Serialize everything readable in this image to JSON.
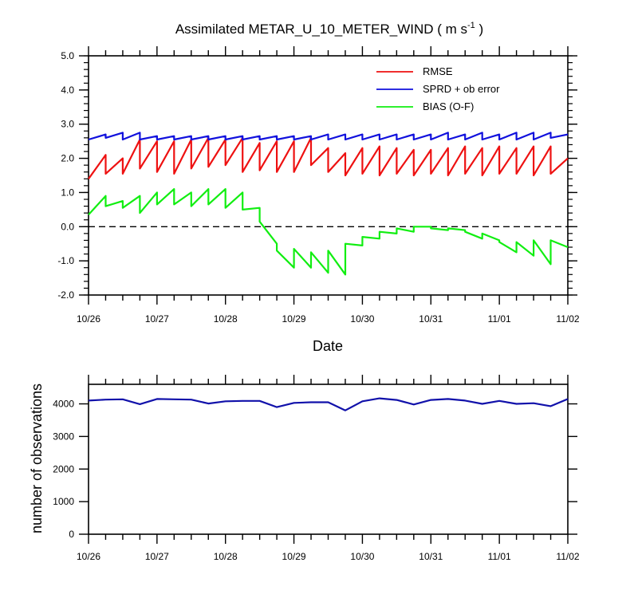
{
  "chart_data": [
    {
      "type": "line",
      "title": "Assimilated METAR_U_10_METER_WIND ( m s",
      "title_superscript": "-1",
      "title_close": " )",
      "xlabel": "Date",
      "ylabel": "",
      "x_ticks": [
        "10/26",
        "10/27",
        "10/28",
        "10/29",
        "10/30",
        "10/31",
        "11/01",
        "11/02"
      ],
      "xlim": [
        "10/26",
        "11/02"
      ],
      "ylim": [
        -2.0,
        5.0
      ],
      "y_ticks": [
        "-2.0",
        "-1.0",
        "0.0",
        "1.0",
        "2.0",
        "3.0",
        "4.0",
        "5.0"
      ],
      "grid": false,
      "legend_position": "top-right",
      "zero_line": "dashed",
      "colors": {
        "rmse": "#ee1111",
        "sprd": "#1111dd",
        "bias": "#11ee11",
        "zero": "#000000"
      },
      "series": [
        {
          "name": "RMSE",
          "x": [
            "10/26 00:00",
            "10/26 06:00",
            "10/26 06:00",
            "10/26 12:00",
            "10/26 12:00",
            "10/26 18:00",
            "10/26 18:00",
            "10/27 00:00",
            "10/27 00:00",
            "10/27 06:00",
            "10/27 06:00",
            "10/27 12:00",
            "10/27 12:00",
            "10/27 18:00",
            "10/27 18:00",
            "10/28 00:00",
            "10/28 00:00",
            "10/28 06:00",
            "10/28 06:00",
            "10/28 12:00",
            "10/28 12:00",
            "10/28 18:00",
            "10/28 18:00",
            "10/29 00:00",
            "10/29 00:00",
            "10/29 06:00",
            "10/29 06:00",
            "10/29 12:00",
            "10/29 12:00",
            "10/29 18:00",
            "10/29 18:00",
            "10/30 00:00",
            "10/30 00:00",
            "10/30 06:00",
            "10/30 06:00",
            "10/30 12:00",
            "10/30 12:00",
            "10/30 18:00",
            "10/30 18:00",
            "10/31 00:00",
            "10/31 00:00",
            "10/31 06:00",
            "10/31 06:00",
            "10/31 12:00",
            "10/31 12:00",
            "10/31 18:00",
            "10/31 18:00",
            "11/01 00:00",
            "11/01 00:00",
            "11/01 06:00",
            "11/01 06:00",
            "11/01 12:00",
            "11/01 12:00",
            "11/01 18:00",
            "11/01 18:00",
            "11/02 00:00"
          ],
          "values": [
            1.4,
            2.1,
            1.55,
            2.0,
            1.55,
            2.55,
            1.7,
            2.5,
            1.6,
            2.5,
            1.55,
            2.55,
            1.7,
            2.6,
            1.75,
            2.55,
            1.8,
            2.6,
            1.6,
            2.45,
            1.65,
            2.5,
            1.6,
            2.5,
            1.6,
            2.6,
            1.8,
            2.3,
            1.6,
            2.15,
            1.5,
            2.3,
            1.55,
            2.35,
            1.5,
            2.3,
            1.55,
            2.25,
            1.5,
            2.25,
            1.55,
            2.3,
            1.5,
            2.35,
            1.55,
            2.3,
            1.5,
            2.35,
            1.55,
            2.3,
            1.55,
            2.35,
            1.5,
            2.35,
            1.55,
            2.0
          ]
        },
        {
          "name": "SPRD + ob error",
          "x": [
            "10/26 00:00",
            "10/26 06:00",
            "10/26 06:00",
            "10/26 12:00",
            "10/26 12:00",
            "10/26 18:00",
            "10/26 18:00",
            "10/27 00:00",
            "10/27 00:00",
            "10/27 06:00",
            "10/27 06:00",
            "10/27 12:00",
            "10/27 12:00",
            "10/27 18:00",
            "10/27 18:00",
            "10/28 00:00",
            "10/28 00:00",
            "10/28 06:00",
            "10/28 06:00",
            "10/28 12:00",
            "10/28 12:00",
            "10/28 18:00",
            "10/28 18:00",
            "10/29 00:00",
            "10/29 00:00",
            "10/29 06:00",
            "10/29 06:00",
            "10/29 12:00",
            "10/29 12:00",
            "10/29 18:00",
            "10/29 18:00",
            "10/30 00:00",
            "10/30 00:00",
            "10/30 06:00",
            "10/30 06:00",
            "10/30 12:00",
            "10/30 12:00",
            "10/30 18:00",
            "10/30 18:00",
            "10/31 00:00",
            "10/31 00:00",
            "10/31 06:00",
            "10/31 06:00",
            "10/31 12:00",
            "10/31 12:00",
            "10/31 18:00",
            "10/31 18:00",
            "11/01 00:00",
            "11/01 00:00",
            "11/01 06:00",
            "11/01 06:00",
            "11/01 12:00",
            "11/01 12:00",
            "11/01 18:00",
            "11/01 18:00",
            "11/02 00:00"
          ],
          "values": [
            2.55,
            2.7,
            2.6,
            2.75,
            2.55,
            2.75,
            2.55,
            2.65,
            2.55,
            2.65,
            2.55,
            2.65,
            2.55,
            2.65,
            2.55,
            2.65,
            2.55,
            2.65,
            2.55,
            2.65,
            2.55,
            2.65,
            2.55,
            2.65,
            2.55,
            2.65,
            2.55,
            2.7,
            2.55,
            2.7,
            2.55,
            2.7,
            2.55,
            2.7,
            2.55,
            2.7,
            2.55,
            2.7,
            2.55,
            2.7,
            2.55,
            2.75,
            2.55,
            2.7,
            2.55,
            2.75,
            2.55,
            2.7,
            2.55,
            2.75,
            2.55,
            2.75,
            2.55,
            2.75,
            2.6,
            2.7
          ]
        },
        {
          "name": "BIAS (O-F)",
          "x": [
            "10/26 00:00",
            "10/26 06:00",
            "10/26 06:00",
            "10/26 12:00",
            "10/26 12:00",
            "10/26 18:00",
            "10/26 18:00",
            "10/27 00:00",
            "10/27 00:00",
            "10/27 06:00",
            "10/27 06:00",
            "10/27 12:00",
            "10/27 12:00",
            "10/27 18:00",
            "10/27 18:00",
            "10/28 00:00",
            "10/28 00:00",
            "10/28 06:00",
            "10/28 06:00",
            "10/28 12:00",
            "10/28 12:00",
            "10/28 18:00",
            "10/28 18:00",
            "10/29 00:00",
            "10/29 00:00",
            "10/29 06:00",
            "10/29 06:00",
            "10/29 12:00",
            "10/29 12:00",
            "10/29 18:00",
            "10/29 18:00",
            "10/30 00:00",
            "10/30 00:00",
            "10/30 06:00",
            "10/30 06:00",
            "10/30 12:00",
            "10/30 12:00",
            "10/30 18:00",
            "10/30 18:00",
            "10/31 00:00",
            "10/31 00:00",
            "10/31 06:00",
            "10/31 06:00",
            "10/31 12:00",
            "10/31 12:00",
            "10/31 18:00",
            "10/31 18:00",
            "11/01 00:00",
            "11/01 00:00",
            "11/01 06:00",
            "11/01 06:00",
            "11/01 12:00",
            "11/01 12:00",
            "11/01 18:00",
            "11/01 18:00",
            "11/02 00:00"
          ],
          "values": [
            0.35,
            0.9,
            0.6,
            0.75,
            0.55,
            0.9,
            0.4,
            1.0,
            0.65,
            1.1,
            0.65,
            1.0,
            0.6,
            1.1,
            0.65,
            1.1,
            0.55,
            1.0,
            0.5,
            0.55,
            0.15,
            -0.5,
            -0.7,
            -1.2,
            -0.65,
            -1.2,
            -0.75,
            -1.35,
            -0.7,
            -1.4,
            -0.5,
            -0.55,
            -0.3,
            -0.35,
            -0.15,
            -0.2,
            -0.05,
            -0.15,
            0.0,
            0.0,
            -0.05,
            -0.1,
            -0.05,
            -0.1,
            -0.15,
            -0.35,
            -0.2,
            -0.4,
            -0.45,
            -0.75,
            -0.45,
            -0.85,
            -0.4,
            -1.1,
            -0.4,
            -0.6
          ]
        }
      ]
    },
    {
      "type": "line",
      "title": "",
      "xlabel": "",
      "ylabel": "number of observations",
      "x_ticks": [
        "10/26",
        "10/27",
        "10/28",
        "10/29",
        "10/30",
        "10/31",
        "11/01",
        "11/02"
      ],
      "xlim": [
        "10/26",
        "11/02"
      ],
      "ylim": [
        0,
        4600
      ],
      "y_ticks": [
        "0",
        "1000",
        "2000",
        "3000",
        "4000"
      ],
      "grid": false,
      "colors": {
        "obs": "#1111aa"
      },
      "series": [
        {
          "name": "",
          "x": [
            "10/26 00:00",
            "10/26 06:00",
            "10/26 12:00",
            "10/26 18:00",
            "10/27 00:00",
            "10/27 06:00",
            "10/27 12:00",
            "10/27 18:00",
            "10/28 00:00",
            "10/28 06:00",
            "10/28 12:00",
            "10/28 18:00",
            "10/29 00:00",
            "10/29 06:00",
            "10/29 12:00",
            "10/29 18:00",
            "10/30 00:00",
            "10/30 06:00",
            "10/30 12:00",
            "10/30 18:00",
            "10/31 00:00",
            "10/31 06:00",
            "10/31 12:00",
            "10/31 18:00",
            "11/01 00:00",
            "11/01 06:00",
            "11/01 12:00",
            "11/01 18:00",
            "11/02 00:00"
          ],
          "values": [
            4100,
            4130,
            4140,
            3990,
            4150,
            4140,
            4130,
            4010,
            4080,
            4090,
            4090,
            3900,
            4030,
            4050,
            4050,
            3800,
            4080,
            4170,
            4120,
            3980,
            4120,
            4150,
            4100,
            4000,
            4090,
            4000,
            4020,
            3930,
            4150
          ]
        }
      ]
    }
  ]
}
